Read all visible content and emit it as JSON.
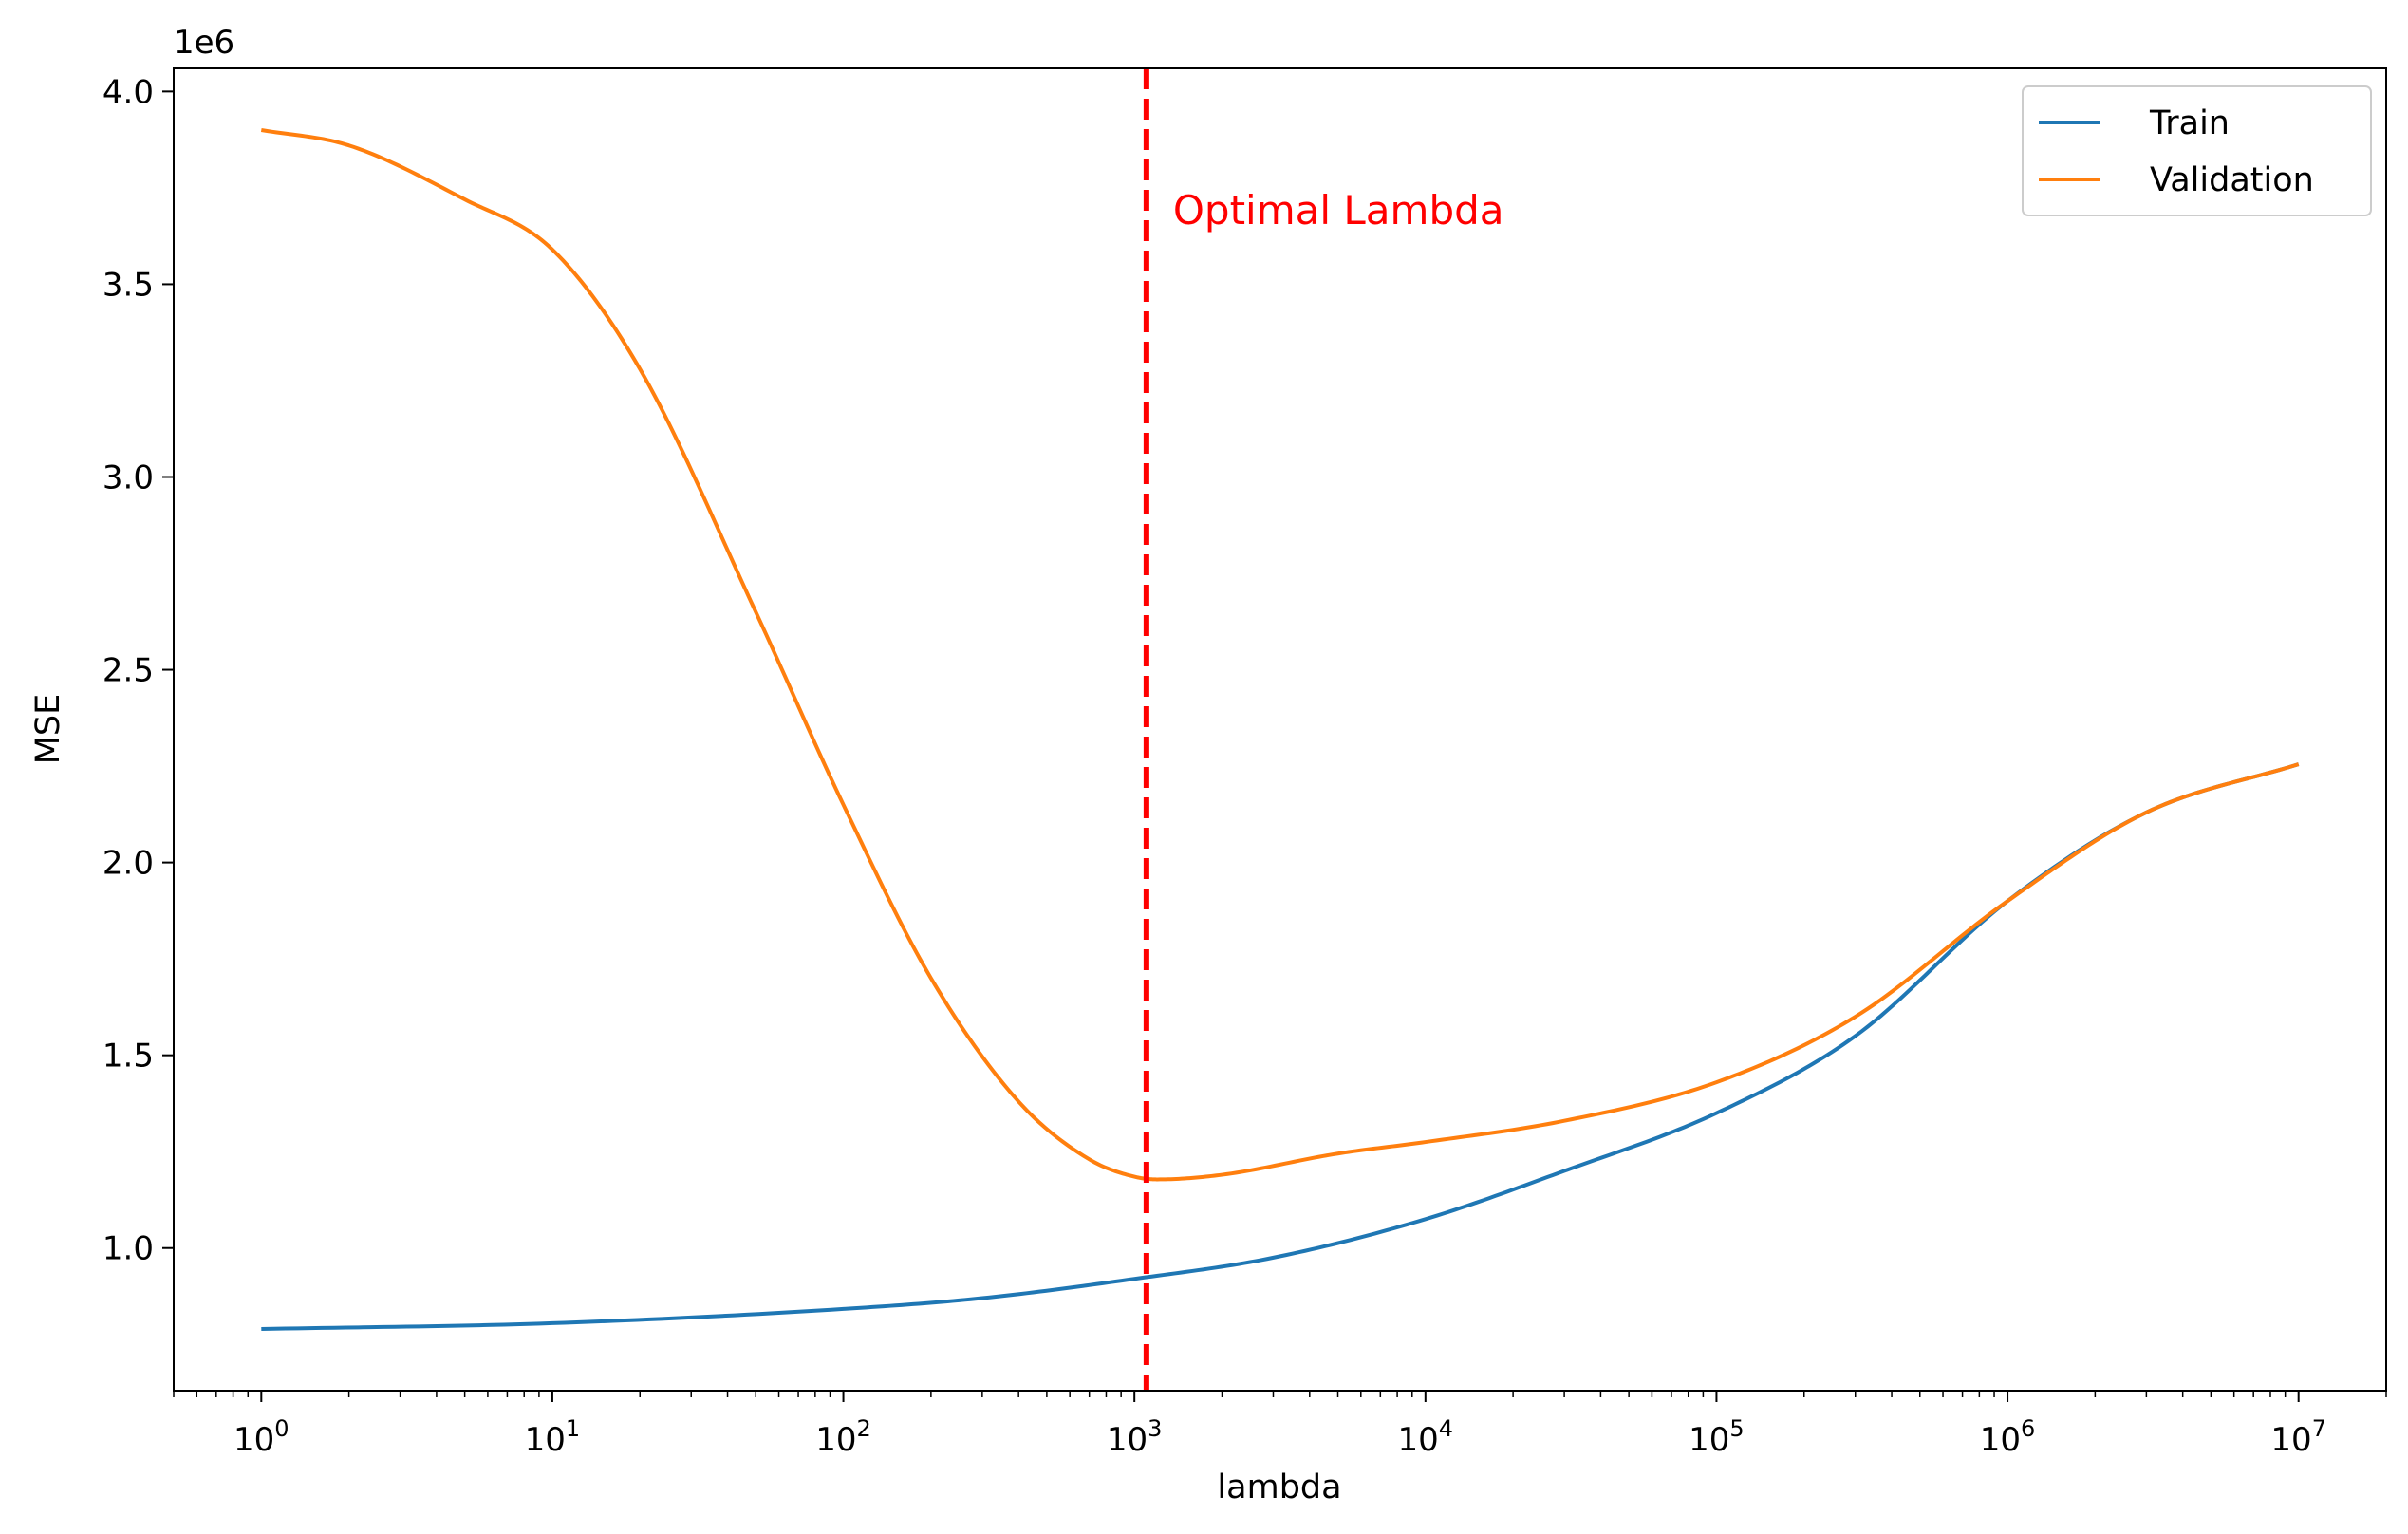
{
  "chart_data": {
    "type": "line",
    "xlabel": "lambda",
    "ylabel": "MSE",
    "y_offset_label": "1e6",
    "x_scale": "log",
    "x_tick_labels": [
      {
        "value": 1,
        "base": "10",
        "exp": "0"
      },
      {
        "value": 10,
        "base": "10",
        "exp": "1"
      },
      {
        "value": 100,
        "base": "10",
        "exp": "2"
      },
      {
        "value": 1000,
        "base": "10",
        "exp": "3"
      },
      {
        "value": 10000,
        "base": "10",
        "exp": "4"
      },
      {
        "value": 100000,
        "base": "10",
        "exp": "5"
      },
      {
        "value": 1000000,
        "base": "10",
        "exp": "6"
      },
      {
        "value": 10000000,
        "base": "10",
        "exp": "7"
      }
    ],
    "y_ticks": [
      {
        "value": 1000000,
        "label": "1.0"
      },
      {
        "value": 1500000,
        "label": "1.5"
      },
      {
        "value": 2000000,
        "label": "2.0"
      },
      {
        "value": 2500000,
        "label": "2.5"
      },
      {
        "value": 3000000,
        "label": "3.0"
      },
      {
        "value": 3500000,
        "label": "3.5"
      },
      {
        "value": 4000000,
        "label": "4.0"
      }
    ],
    "xlim": [
      0.5,
      20000000
    ],
    "ylim": [
      630000,
      4060000
    ],
    "grid": false,
    "legend_position": "top-right",
    "series": [
      {
        "name": "Train",
        "color": "#1f77b4",
        "points": [
          [
            1,
            790000
          ],
          [
            10,
            805000
          ],
          [
            100,
            842000
          ],
          [
            300,
            870000
          ],
          [
            1000,
            920000
          ],
          [
            3000,
            975000
          ],
          [
            10000,
            1075000
          ],
          [
            30000,
            1200000
          ],
          [
            100000,
            1350000
          ],
          [
            300000,
            1550000
          ],
          [
            1000000,
            1900000
          ],
          [
            3000000,
            2130000
          ],
          [
            10000000,
            2255000
          ]
        ]
      },
      {
        "name": "Validation",
        "color": "#ff7f0e",
        "points": [
          [
            1,
            3900000
          ],
          [
            2,
            3860000
          ],
          [
            5,
            3720000
          ],
          [
            10,
            3590000
          ],
          [
            20,
            3280000
          ],
          [
            50,
            2650000
          ],
          [
            100,
            2150000
          ],
          [
            200,
            1700000
          ],
          [
            400,
            1380000
          ],
          [
            700,
            1230000
          ],
          [
            1000,
            1185000
          ],
          [
            1200,
            1178000
          ],
          [
            2000,
            1190000
          ],
          [
            5000,
            1245000
          ],
          [
            10000,
            1275000
          ],
          [
            30000,
            1330000
          ],
          [
            100000,
            1430000
          ],
          [
            300000,
            1600000
          ],
          [
            1000000,
            1900000
          ],
          [
            3000000,
            2130000
          ],
          [
            10000000,
            2255000
          ]
        ]
      }
    ],
    "annotation": {
      "text": "Optimal Lambda",
      "x": 1100,
      "color": "#ff0000",
      "line_style": "dashed"
    }
  }
}
